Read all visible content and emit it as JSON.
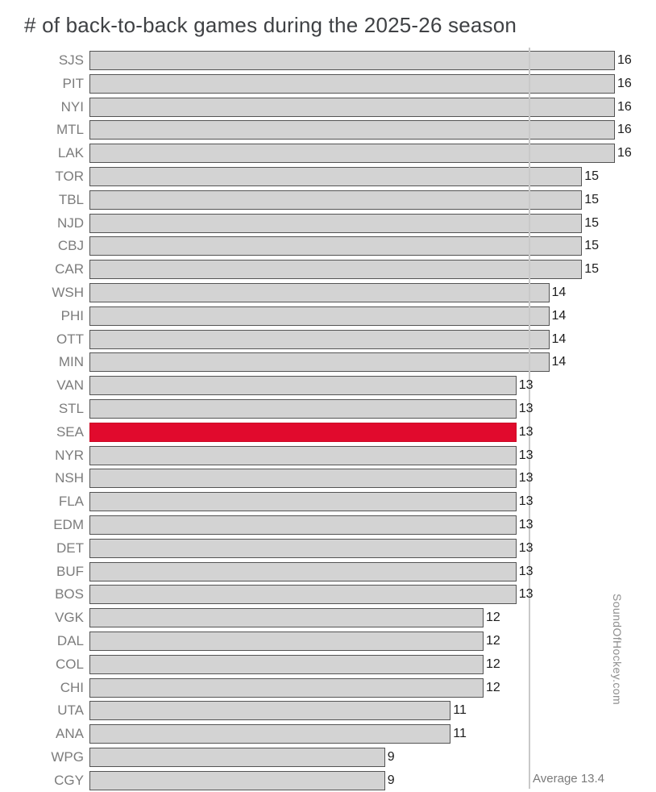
{
  "chart_data": {
    "type": "bar",
    "orientation": "horizontal",
    "title": "# of back-to-back games during the 2025-26 season",
    "categories": [
      "SJS",
      "PIT",
      "NYI",
      "MTL",
      "LAK",
      "TOR",
      "TBL",
      "NJD",
      "CBJ",
      "CAR",
      "WSH",
      "PHI",
      "OTT",
      "MIN",
      "VAN",
      "STL",
      "SEA",
      "NYR",
      "NSH",
      "FLA",
      "EDM",
      "DET",
      "BUF",
      "BOS",
      "VGK",
      "DAL",
      "COL",
      "CHI",
      "UTA",
      "ANA",
      "WPG",
      "CGY"
    ],
    "values": [
      16,
      16,
      16,
      16,
      16,
      15,
      15,
      15,
      15,
      15,
      14,
      14,
      14,
      14,
      13,
      13,
      13,
      13,
      13,
      13,
      13,
      13,
      13,
      13,
      12,
      12,
      12,
      12,
      11,
      11,
      9,
      9
    ],
    "highlight_category": "SEA",
    "average": 13.4,
    "average_label": "Average 13.4",
    "watermark": "SoundOfHockey.com",
    "xlim": [
      0,
      16
    ],
    "grid": false,
    "legend": "none",
    "value_labels": "outside-end",
    "colors": {
      "page_bg": "#ffffff",
      "title": "#3f4144",
      "team_label": "#7c7c7c",
      "value_label": "#1c1c1c",
      "bar": "#d3d3d3",
      "bar_border": "#545454",
      "highlight": "#e10a2d",
      "highlight_border": "#cb0624",
      "average_line": "#c9c9c9",
      "annotation": "#7a7a7a",
      "watermark": "#8e8e8e"
    }
  }
}
